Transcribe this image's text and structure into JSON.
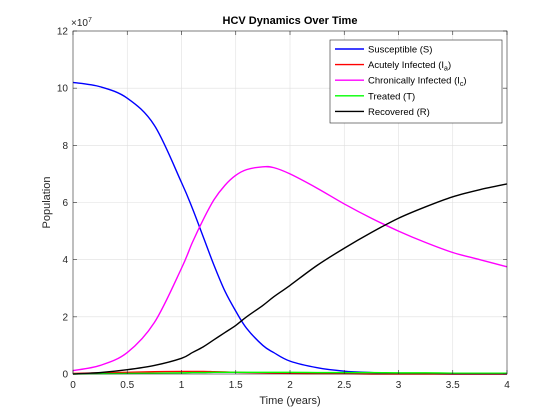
{
  "chart_data": {
    "type": "line",
    "title": "HCV Dynamics Over Time",
    "xlabel": "Time (years)",
    "ylabel": "Population",
    "y_exponent_label": "×10",
    "y_exponent_power": "7",
    "xlim": [
      0,
      4
    ],
    "ylim": [
      0,
      12
    ],
    "x_ticks": [
      0,
      0.5,
      1,
      1.5,
      2,
      2.5,
      3,
      3.5,
      4
    ],
    "x_tick_labels": [
      "0",
      "0.5",
      "1",
      "1.5",
      "2",
      "2.5",
      "3",
      "3.5",
      "4"
    ],
    "y_ticks": [
      0,
      2,
      4,
      6,
      8,
      10,
      12
    ],
    "y_tick_labels": [
      "0",
      "2",
      "4",
      "6",
      "8",
      "10",
      "12"
    ],
    "grid": true,
    "legend_position": "top-right",
    "x": [
      0,
      0.25,
      0.5,
      0.75,
      1.0,
      1.1,
      1.2,
      1.3,
      1.4,
      1.5,
      1.6,
      1.75,
      1.85,
      2.0,
      2.25,
      2.5,
      2.75,
      3.0,
      3.25,
      3.5,
      3.75,
      4.0
    ],
    "series": [
      {
        "name": "Susceptible (S)",
        "name_main": "Susceptible (S)",
        "name_sub": "",
        "name_tail": "",
        "color": "#0000ff",
        "values": [
          10.2,
          10.05,
          9.65,
          8.7,
          6.7,
          5.8,
          4.8,
          3.8,
          2.9,
          2.2,
          1.6,
          1.0,
          0.75,
          0.45,
          0.22,
          0.1,
          0.05,
          0.02,
          0.01,
          0.0,
          0.0,
          0.0
        ]
      },
      {
        "name": "Acutely Infected (Ia)",
        "name_main": "Acutely Infected (I",
        "name_sub": "a",
        "name_tail": ")",
        "color": "#ff0000",
        "values": [
          0.02,
          0.04,
          0.06,
          0.08,
          0.09,
          0.09,
          0.09,
          0.08,
          0.07,
          0.06,
          0.05,
          0.04,
          0.03,
          0.02,
          0.01,
          0.01,
          0.0,
          0.0,
          0.0,
          0.0,
          0.0,
          0.0
        ]
      },
      {
        "name": "Chronically Infected (Ic)",
        "name_main": "Chronically Infected (I",
        "name_sub": "c",
        "name_tail": ")",
        "color": "#ff00ff",
        "values": [
          0.12,
          0.3,
          0.75,
          1.8,
          3.7,
          4.6,
          5.4,
          6.1,
          6.6,
          6.95,
          7.15,
          7.25,
          7.22,
          7.0,
          6.5,
          5.95,
          5.45,
          5.0,
          4.6,
          4.25,
          4.0,
          3.75
        ]
      },
      {
        "name": "Treated (T)",
        "name_main": "Treated (T)",
        "name_sub": "",
        "name_tail": "",
        "color": "#00ff00",
        "values": [
          0.0,
          0.01,
          0.02,
          0.03,
          0.04,
          0.05,
          0.05,
          0.06,
          0.06,
          0.06,
          0.06,
          0.06,
          0.06,
          0.06,
          0.05,
          0.05,
          0.05,
          0.04,
          0.04,
          0.03,
          0.03,
          0.03
        ]
      },
      {
        "name": "Recovered (R)",
        "name_main": "Recovered (R)",
        "name_sub": "",
        "name_tail": "",
        "color": "#000000",
        "values": [
          0.0,
          0.05,
          0.15,
          0.3,
          0.55,
          0.75,
          0.95,
          1.2,
          1.45,
          1.7,
          2.0,
          2.4,
          2.7,
          3.1,
          3.8,
          4.4,
          4.95,
          5.45,
          5.85,
          6.2,
          6.45,
          6.65
        ]
      }
    ]
  }
}
